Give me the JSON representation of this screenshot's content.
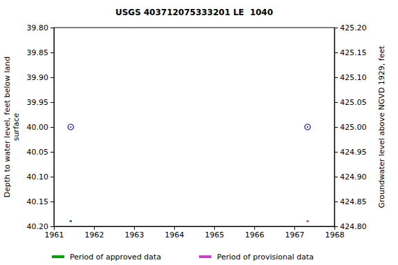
{
  "chart_data": {
    "type": "scatter",
    "title": "USGS 403712075333201 LE  1040",
    "y_label": "Depth to water level, feet below land surface",
    "y2_label": "Groundwater level above NGVD 1929, feet",
    "xlim": [
      1961,
      1968
    ],
    "xticks": [
      1961,
      1962,
      1963,
      1964,
      1965,
      1966,
      1967,
      1968
    ],
    "ylim": [
      40.2,
      39.8
    ],
    "yticks": [
      {
        "value": 39.8,
        "label": "39.80"
      },
      {
        "value": 39.85,
        "label": "39.85"
      },
      {
        "value": 39.9,
        "label": "39.90"
      },
      {
        "value": 39.95,
        "label": "39.95"
      },
      {
        "value": 40.0,
        "label": "40.00"
      },
      {
        "value": 40.05,
        "label": "40.05"
      },
      {
        "value": 40.1,
        "label": "40.10"
      },
      {
        "value": 40.15,
        "label": "40.15"
      },
      {
        "value": 40.2,
        "label": "40.20"
      }
    ],
    "y2lim": [
      424.8,
      425.2
    ],
    "y2ticks": [
      {
        "value": 425.2,
        "label": "425.20"
      },
      {
        "value": 425.15,
        "label": "425.15"
      },
      {
        "value": 425.1,
        "label": "425.10"
      },
      {
        "value": 425.05,
        "label": "425.05"
      },
      {
        "value": 425.0,
        "label": "425.00"
      },
      {
        "value": 424.95,
        "label": "424.95"
      },
      {
        "value": 424.9,
        "label": "424.90"
      },
      {
        "value": 424.85,
        "label": "424.85"
      },
      {
        "value": 424.8,
        "label": "424.80"
      }
    ],
    "grid": false,
    "series": [
      {
        "color": "#0000cc",
        "marker": "circle",
        "x": [
          1961.42,
          1967.33
        ],
        "values": [
          40.0,
          40.0
        ]
      }
    ],
    "periods": [
      {
        "name": "Period of approved data",
        "color": "#00a000",
        "x": [
          1961.42
        ]
      },
      {
        "name": "Period of provisional data",
        "color": "#d040d0",
        "x": [
          1967.33
        ]
      }
    ],
    "legend": "bottom"
  }
}
